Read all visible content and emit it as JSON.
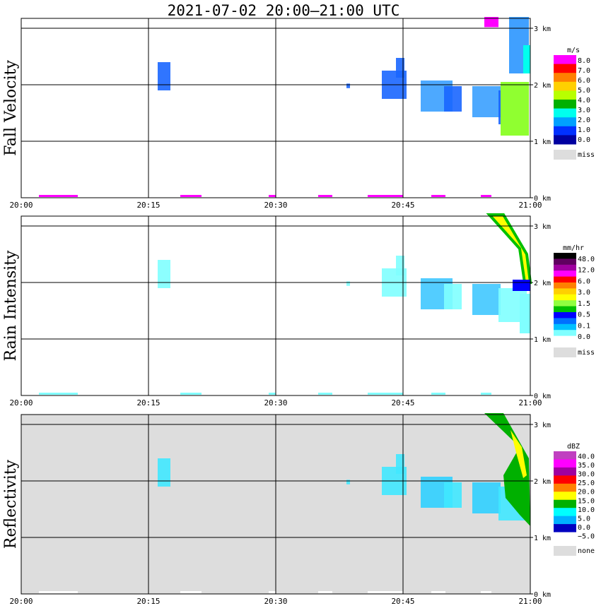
{
  "title": "2021-07-02   20:00–21:00 UTC",
  "chart_data": [
    {
      "type": "heatmap",
      "title": "Fall Velocity",
      "x_ticks": [
        "20:00",
        "20:15",
        "20:30",
        "20:45",
        "21:00"
      ],
      "x_range": [
        "20:00",
        "21:00"
      ],
      "y_ticks": [
        "0 km",
        "1 km",
        "2 km",
        "3 km"
      ],
      "y_range_km": [
        0,
        3.2
      ],
      "colorbar_unit": "m/s",
      "colorbar_labels": [
        "8.0",
        "7.0",
        "6.0",
        "5.0",
        "4.0",
        "3.0",
        "2.0",
        "1.0",
        "0.0"
      ],
      "colorbar_colors": [
        "#ff00ff",
        "#ff0000",
        "#ff8000",
        "#ffd000",
        "#b8ff00",
        "#00b000",
        "#00ffee",
        "#00a0ff",
        "#0030ff",
        "#0000a0"
      ],
      "missing_label": "miss",
      "missing_color": "#dddddd",
      "background": "#ffffff"
    },
    {
      "type": "heatmap",
      "title": "Rain Intensity",
      "x_ticks": [
        "20:00",
        "20:15",
        "20:30",
        "20:45",
        "21:00"
      ],
      "x_range": [
        "20:00",
        "21:00"
      ],
      "y_ticks": [
        "0 km",
        "1 km",
        "2 km",
        "3 km"
      ],
      "y_range_km": [
        0,
        3.2
      ],
      "colorbar_unit": "mm/hr",
      "colorbar_labels": [
        "48.0",
        "12.0",
        "6.0",
        "3.0",
        "1.5",
        "0.5",
        "0.1",
        "0.0"
      ],
      "colorbar_colors": [
        "#000000",
        "#600060",
        "#a000a0",
        "#ff00ff",
        "#ff0000",
        "#ff8000",
        "#ffd000",
        "#ffff00",
        "#90ff40",
        "#00c000",
        "#0000ff",
        "#0070ff",
        "#00c0ff",
        "#80ffff",
        "#ffffff"
      ],
      "missing_label": "miss",
      "missing_color": "#dddddd",
      "background": "#ffffff"
    },
    {
      "type": "heatmap",
      "title": "Reflectivity",
      "x_ticks": [
        "20:00",
        "20:15",
        "20:30",
        "20:45",
        "21:00"
      ],
      "x_range": [
        "20:00",
        "21:00"
      ],
      "y_ticks": [
        "0 km",
        "1 km",
        "2 km",
        "3 km"
      ],
      "y_range_km": [
        0,
        3.2
      ],
      "colorbar_unit": "dBZ",
      "colorbar_labels": [
        "40.0",
        "35.0",
        "30.0",
        "25.0",
        "20.0",
        "15.0",
        "10.0",
        "5.0",
        "0.0",
        "−5.0"
      ],
      "colorbar_colors": [
        "#c040c0",
        "#ff00ff",
        "#a000a0",
        "#ff0000",
        "#ff8000",
        "#ffff00",
        "#00b000",
        "#00ffff",
        "#00b0ff",
        "#0000c0",
        "#ffffff"
      ],
      "missing_label": "none",
      "missing_color": "#dddddd",
      "background": "#dddddd"
    }
  ]
}
